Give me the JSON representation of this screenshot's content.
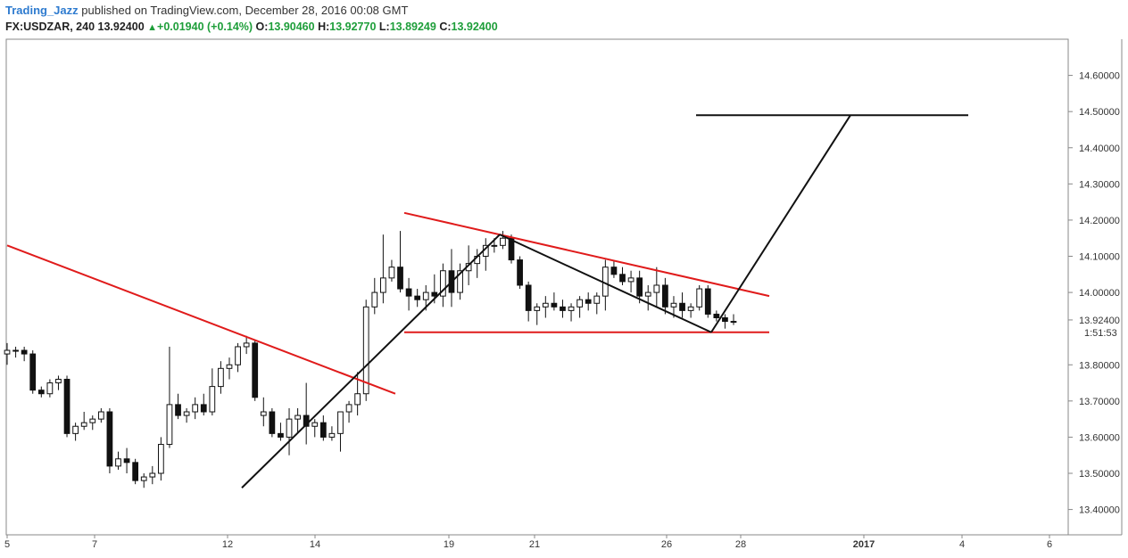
{
  "header": {
    "author": "Trading_Jazz",
    "published_text": "published on TradingView.com, December 28, 2016 00:08 GMT",
    "symbol": "FX:USDZAR, 240",
    "price": "13.92400",
    "change": "+0.01940 (+0.14%)",
    "o_label": "O:",
    "o_value": "13.90460",
    "h_label": "H:",
    "h_value": "13.92770",
    "l_label": "L:",
    "l_value": "13.89249",
    "c_label": "C:",
    "c_value": "13.92400"
  },
  "chart_data": {
    "type": "candlestick",
    "x_tick_labels": [
      "5",
      "7",
      "12",
      "14",
      "19",
      "21",
      "26",
      "28",
      "2017",
      "4",
      "6"
    ],
    "y_tick_labels": [
      "14.60000",
      "14.50000",
      "14.40000",
      "14.30000",
      "14.20000",
      "14.10000",
      "14.00000",
      "13.80000",
      "13.70000",
      "13.60000",
      "13.50000",
      "13.40000"
    ],
    "y_range": [
      13.33,
      14.7
    ],
    "current_price_label": "13.92400",
    "countdown_label": "1:51:53",
    "candles": [
      [
        13.83,
        13.86,
        13.8,
        13.84
      ],
      [
        13.84,
        13.85,
        13.82,
        13.84
      ],
      [
        13.84,
        13.85,
        13.81,
        13.83
      ],
      [
        13.83,
        13.84,
        13.72,
        13.73
      ],
      [
        13.73,
        13.74,
        13.71,
        13.72
      ],
      [
        13.72,
        13.76,
        13.71,
        13.75
      ],
      [
        13.75,
        13.77,
        13.73,
        13.76
      ],
      [
        13.76,
        13.77,
        13.6,
        13.61
      ],
      [
        13.61,
        13.64,
        13.59,
        13.63
      ],
      [
        13.63,
        13.67,
        13.62,
        13.64
      ],
      [
        13.64,
        13.66,
        13.62,
        13.65
      ],
      [
        13.65,
        13.68,
        13.64,
        13.67
      ],
      [
        13.67,
        13.68,
        13.5,
        13.52
      ],
      [
        13.52,
        13.56,
        13.51,
        13.54
      ],
      [
        13.54,
        13.57,
        13.5,
        13.53
      ],
      [
        13.53,
        13.54,
        13.47,
        13.48
      ],
      [
        13.48,
        13.5,
        13.46,
        13.49
      ],
      [
        13.49,
        13.52,
        13.47,
        13.5
      ],
      [
        13.5,
        13.6,
        13.48,
        13.58
      ],
      [
        13.58,
        13.85,
        13.57,
        13.69
      ],
      [
        13.69,
        13.72,
        13.65,
        13.66
      ],
      [
        13.66,
        13.68,
        13.64,
        13.67
      ],
      [
        13.67,
        13.71,
        13.65,
        13.69
      ],
      [
        13.69,
        13.72,
        13.66,
        13.67
      ],
      [
        13.67,
        13.79,
        13.66,
        13.74
      ],
      [
        13.74,
        13.81,
        13.72,
        13.79
      ],
      [
        13.79,
        13.82,
        13.76,
        13.8
      ],
      [
        13.8,
        13.86,
        13.78,
        13.85
      ],
      [
        13.85,
        13.88,
        13.83,
        13.86
      ],
      [
        13.86,
        13.87,
        13.7,
        13.71
      ],
      [
        13.66,
        13.71,
        13.63,
        13.67
      ],
      [
        13.67,
        13.68,
        13.6,
        13.61
      ],
      [
        13.61,
        13.64,
        13.59,
        13.6
      ],
      [
        13.6,
        13.68,
        13.55,
        13.65
      ],
      [
        13.65,
        13.68,
        13.61,
        13.66
      ],
      [
        13.66,
        13.75,
        13.58,
        13.63
      ],
      [
        13.63,
        13.65,
        13.6,
        13.64
      ],
      [
        13.64,
        13.66,
        13.59,
        13.6
      ],
      [
        13.6,
        13.63,
        13.59,
        13.61
      ],
      [
        13.61,
        13.67,
        13.56,
        13.67
      ],
      [
        13.67,
        13.7,
        13.64,
        13.69
      ],
      [
        13.69,
        13.78,
        13.66,
        13.72
      ],
      [
        13.72,
        13.98,
        13.7,
        13.96
      ],
      [
        13.96,
        14.04,
        13.94,
        14.0
      ],
      [
        14.0,
        14.16,
        13.97,
        14.04
      ],
      [
        14.04,
        14.09,
        14.03,
        14.07
      ],
      [
        14.07,
        14.17,
        14.0,
        14.01
      ],
      [
        14.01,
        14.04,
        13.95,
        13.99
      ],
      [
        13.99,
        14.01,
        13.96,
        13.98
      ],
      [
        13.98,
        14.02,
        13.95,
        14.0
      ],
      [
        14.0,
        14.05,
        13.97,
        13.99
      ],
      [
        13.99,
        14.08,
        13.96,
        14.06
      ],
      [
        14.06,
        14.12,
        13.96,
        14.0
      ],
      [
        14.0,
        14.08,
        13.98,
        14.06
      ],
      [
        14.06,
        14.13,
        14.02,
        14.08
      ],
      [
        14.08,
        14.12,
        14.04,
        14.1
      ],
      [
        14.1,
        14.15,
        14.06,
        14.13
      ],
      [
        14.13,
        14.15,
        14.11,
        14.13
      ],
      [
        14.13,
        14.17,
        14.12,
        14.15
      ],
      [
        14.15,
        14.16,
        14.08,
        14.09
      ],
      [
        14.09,
        14.1,
        14.01,
        14.02
      ],
      [
        14.02,
        14.03,
        13.92,
        13.95
      ],
      [
        13.95,
        13.97,
        13.91,
        13.96
      ],
      [
        13.96,
        13.99,
        13.93,
        13.97
      ],
      [
        13.97,
        14.0,
        13.95,
        13.96
      ],
      [
        13.96,
        13.98,
        13.93,
        13.95
      ],
      [
        13.95,
        13.97,
        13.92,
        13.96
      ],
      [
        13.96,
        13.99,
        13.93,
        13.98
      ],
      [
        13.98,
        14.0,
        13.95,
        13.97
      ],
      [
        13.97,
        14.0,
        13.94,
        13.99
      ],
      [
        13.99,
        14.09,
        13.95,
        14.07
      ],
      [
        14.07,
        14.09,
        14.04,
        14.05
      ],
      [
        14.05,
        14.07,
        14.02,
        14.03
      ],
      [
        14.03,
        14.06,
        14.0,
        14.04
      ],
      [
        14.04,
        14.06,
        13.97,
        13.99
      ],
      [
        13.99,
        14.02,
        13.95,
        14.0
      ],
      [
        14.0,
        14.07,
        13.96,
        14.02
      ],
      [
        14.02,
        14.04,
        13.94,
        13.96
      ],
      [
        13.96,
        13.99,
        13.93,
        13.97
      ],
      [
        13.97,
        14.0,
        13.93,
        13.95
      ],
      [
        13.95,
        13.97,
        13.93,
        13.96
      ],
      [
        13.96,
        14.02,
        13.95,
        14.01
      ],
      [
        14.01,
        14.02,
        13.93,
        13.94
      ],
      [
        13.94,
        13.95,
        13.92,
        13.93
      ],
      [
        13.93,
        13.94,
        13.9,
        13.92
      ],
      [
        13.92,
        13.94,
        13.91,
        13.92
      ]
    ],
    "trendlines": [
      {
        "color": "#e01b1b",
        "points": [
          [
            "5",
            14.13
          ],
          [
            "14+",
            13.72
          ]
        ]
      },
      {
        "color": "#e01b1b",
        "points": [
          [
            "17+",
            14.22
          ],
          [
            "28+",
            13.99
          ]
        ]
      },
      {
        "color": "#e01b1b",
        "points": [
          [
            "17+",
            13.89
          ],
          [
            "28+",
            13.89
          ]
        ]
      },
      {
        "color": "#111111",
        "points": [
          [
            "12+",
            13.46
          ],
          [
            "20",
            14.16
          ]
        ]
      },
      {
        "color": "#111111",
        "points": [
          [
            "20",
            14.16
          ],
          [
            "27",
            13.89
          ]
        ]
      },
      {
        "color": "#111111",
        "points": [
          [
            "27",
            13.89
          ],
          [
            "31",
            14.49
          ]
        ]
      },
      {
        "color": "#111111",
        "points": [
          [
            "26",
            14.49
          ],
          [
            "4",
            14.49
          ]
        ]
      }
    ]
  }
}
